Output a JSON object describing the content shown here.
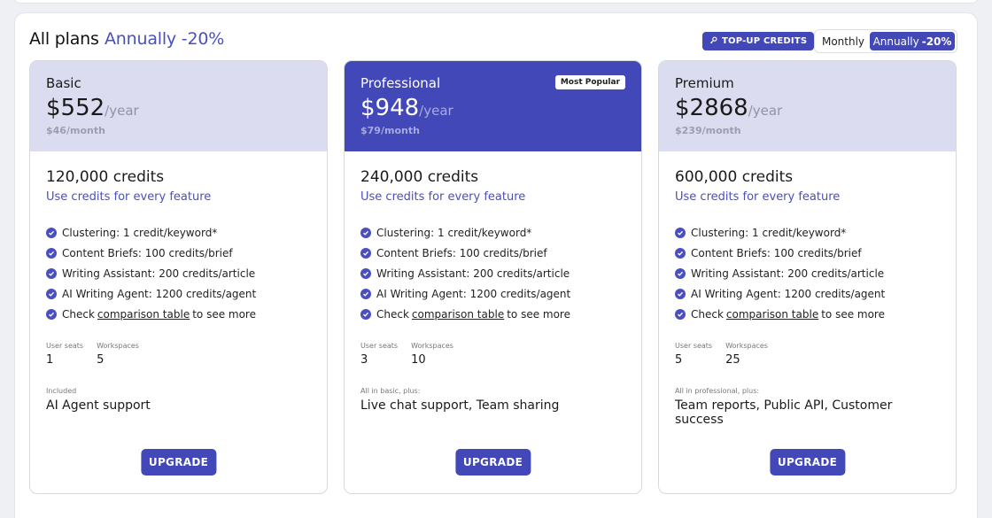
{
  "header": {
    "title": "All plans",
    "title_accent": "Annually -20%",
    "topup_label": "TOP-UP CREDITS",
    "topup_icon": "key-icon",
    "toggle": {
      "monthly": "Monthly",
      "annual": "Annually",
      "annual_discount": "-20%",
      "selected": "annual"
    }
  },
  "colors": {
    "accent": "#4248b8",
    "card_head": "#dcdcf0",
    "link": "#4a4fc0"
  },
  "plans": [
    {
      "name": "Basic",
      "price": "$552",
      "per_year": "/year",
      "per_month": "$46/month",
      "badge": "",
      "credits": "120,000 credits",
      "credits_sub": "Use credits for every feature",
      "features": [
        "Clustering: 1 credit/keyword*",
        "Content Briefs: 100 credits/brief",
        "Writing Assistant: 200 credits/article",
        "AI Writing Agent: 1200 credits/agent"
      ],
      "compare": {
        "pre": "Check",
        "link": "comparison table",
        "post": "to see more"
      },
      "seats_label": "User seats",
      "seats": "1",
      "workspaces_label": "Workspaces",
      "workspaces": "5",
      "included_label": "Included",
      "included": "AI Agent support",
      "button": "UPGRADE"
    },
    {
      "name": "Professional",
      "price": "$948",
      "per_year": "/year",
      "per_month": "$79/month",
      "badge": "Most Popular",
      "credits": "240,000 credits",
      "credits_sub": "Use credits for every feature",
      "features": [
        "Clustering: 1 credit/keyword*",
        "Content Briefs: 100 credits/brief",
        "Writing Assistant: 200 credits/article",
        "AI Writing Agent: 1200 credits/agent"
      ],
      "compare": {
        "pre": "Check",
        "link": "comparison table",
        "post": "to see more"
      },
      "seats_label": "User seats",
      "seats": "3",
      "workspaces_label": "Workspaces",
      "workspaces": "10",
      "included_label": "All in basic, plus:",
      "included": "Live chat support, Team sharing",
      "button": "UPGRADE"
    },
    {
      "name": "Premium",
      "price": "$2868",
      "per_year": "/year",
      "per_month": "$239/month",
      "badge": "",
      "credits": "600,000 credits",
      "credits_sub": "Use credits for every feature",
      "features": [
        "Clustering: 1 credit/keyword*",
        "Content Briefs: 100 credits/brief",
        "Writing Assistant: 200 credits/article",
        "AI Writing Agent: 1200 credits/agent"
      ],
      "compare": {
        "pre": "Check",
        "link": "comparison table",
        "post": "to see more"
      },
      "seats_label": "User seats",
      "seats": "5",
      "workspaces_label": "Workspaces",
      "workspaces": "25",
      "included_label": "All in professional, plus:",
      "included": "Team reports, Public API, Customer success",
      "button": "UPGRADE"
    }
  ]
}
